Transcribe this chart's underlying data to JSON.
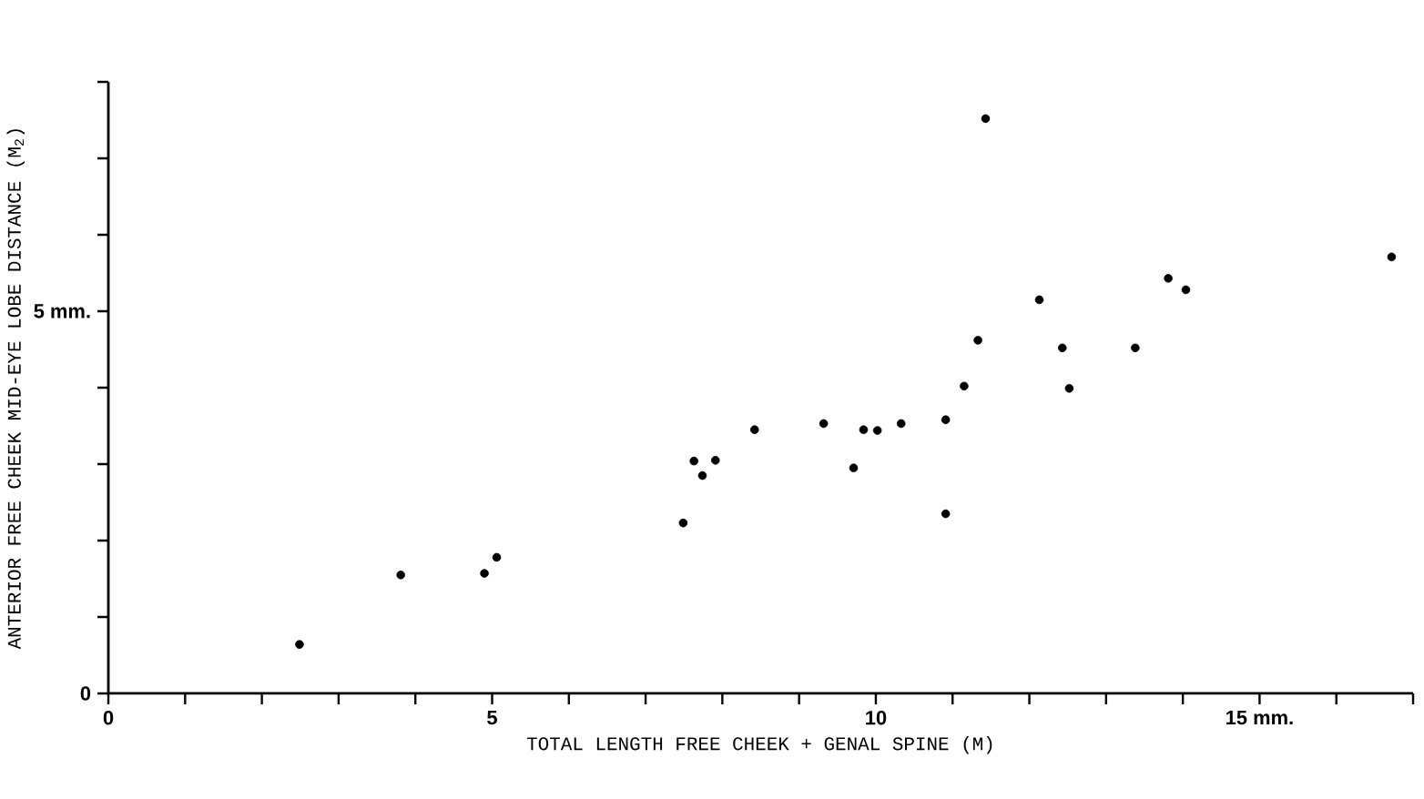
{
  "chart_data": {
    "type": "scatter",
    "xlabel": "TOTAL LENGTH FREE CHEEK + GENAL SPINE (M)",
    "ylabel": "ANTERIOR FREE CHEEK MID-EYE LOBE DISTANCE (M$_{2}$)",
    "x": [
      2.49,
      3.81,
      4.9,
      5.06,
      7.49,
      7.63,
      7.74,
      7.91,
      8.42,
      9.32,
      9.71,
      9.84,
      10.02,
      10.33,
      10.91,
      10.91,
      11.15,
      11.33,
      11.43,
      12.13,
      12.43,
      12.52,
      13.38,
      13.81,
      14.04,
      16.72
    ],
    "values": [
      0.64,
      1.55,
      1.57,
      1.78,
      2.23,
      3.04,
      2.85,
      3.05,
      3.45,
      3.53,
      2.95,
      3.45,
      3.44,
      3.53,
      3.58,
      2.35,
      4.02,
      4.62,
      7.52,
      5.15,
      4.52,
      3.99,
      4.52,
      5.43,
      5.28,
      5.71
    ],
    "color": "#000000",
    "xlim": [
      0,
      17
    ],
    "ylim": [
      0,
      8
    ],
    "xticks": [
      0,
      {
        "value": 1,
        "label": null
      },
      {
        "value": 2,
        "label": null
      },
      {
        "value": 3,
        "label": null
      },
      {
        "value": 4,
        "label": null
      },
      5,
      {
        "value": 6,
        "label": null
      },
      {
        "value": 7,
        "label": null
      },
      {
        "value": 8,
        "label": null
      },
      {
        "value": 9,
        "label": null
      },
      10,
      {
        "value": 11,
        "label": null
      },
      {
        "value": 12,
        "label": null
      },
      {
        "value": 13,
        "label": null
      },
      {
        "value": 14,
        "label": null
      },
      {
        "value": 15,
        "label": "15 mm."
      },
      {
        "value": 16,
        "label": null
      },
      {
        "value": 17,
        "label": null
      }
    ],
    "yticks": [
      0,
      {
        "value": 1,
        "label": null
      },
      {
        "value": 2,
        "label": null
      },
      {
        "value": 3,
        "label": null
      },
      {
        "value": 4,
        "label": null
      },
      {
        "value": 5,
        "label": "5 mm."
      },
      {
        "value": 6,
        "label": null
      },
      {
        "value": 7,
        "label": null
      },
      {
        "value": 8,
        "label": null
      }
    ]
  }
}
